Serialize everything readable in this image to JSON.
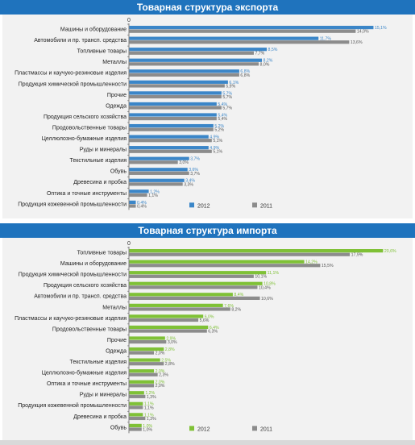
{
  "colors": {
    "header": "#1f73bd",
    "export_2012": "#3b86c8",
    "import_2012": "#7fc136",
    "y2011": "#8c8c8c"
  },
  "chart_data": [
    {
      "type": "bar",
      "orientation": "horizontal",
      "title": "Товарная структура экспорта",
      "zero_label": "0",
      "xlim": [
        0,
        16
      ],
      "legend_position": "bottom-right",
      "categories": [
        "Машины и оборудование",
        "Автомобили и пр. трансп. средства",
        "Топливные товары",
        "Металлы",
        "Пластмассы и каучуко-резиновые изделия",
        "Продукция химической промышленности",
        "Прочие",
        "Одежда",
        "Продукция сельского хозяйства",
        "Продовольственные товары",
        "Целлюлозно-бумажные изделия",
        "Руды и минералы",
        "Текстильные изделия",
        "Обувь",
        "Древесина и пробка",
        "Оптика и точные инструменты",
        "Продукция кожевенной промышленности"
      ],
      "series": [
        {
          "name": "2012",
          "color": "#3b86c8",
          "values": [
            15.1,
            11.7,
            8.5,
            8.2,
            6.8,
            6.1,
            5.7,
            5.4,
            5.4,
            5.2,
            4.9,
            4.9,
            3.7,
            3.6,
            3.4,
            1.2,
            0.4
          ],
          "labels": [
            "15,1%",
            "11,7%",
            "8,5%",
            "8,2%",
            "6,8%",
            "6,1%",
            "5,7%",
            "5,4%",
            "5,4%",
            "5,2%",
            "4,9%",
            "4,9%",
            "3,7%",
            "3,6%",
            "3,4%",
            "1,2%",
            "0,4%"
          ]
        },
        {
          "name": "2011",
          "color": "#8c8c8c",
          "values": [
            14.0,
            13.6,
            7.7,
            8.0,
            6.8,
            5.9,
            5.7,
            5.7,
            5.4,
            5.2,
            5.1,
            5.1,
            3.0,
            3.7,
            3.3,
            1.1,
            0.4
          ],
          "labels": [
            "14,0%",
            "13,6%",
            "7,7%",
            "8,0%",
            "6,8%",
            "5,9%",
            "5,7%",
            "5,7%",
            "5,4%",
            "5,2%",
            "5,1%",
            "5,1%",
            "3,0%",
            "3,7%",
            "3,3%",
            "1,1%",
            "0,4%"
          ]
        }
      ]
    },
    {
      "type": "bar",
      "orientation": "horizontal",
      "title": "Товарная структура импорта",
      "zero_label": "0",
      "xlim": [
        0,
        21
      ],
      "legend_position": "bottom-right",
      "categories": [
        "Топливные товары",
        "Машины и оборудование",
        "Продукция химической промышленности",
        "Продукция сельского хозяйства",
        "Автомобили и пр. трансп. средства",
        "Металлы",
        "Пластмассы и каучуко-резиновые изделия",
        "Продовольственные товары",
        "Прочие",
        "Одежда",
        "Текстильные изделия",
        "Целлюлозно-бумажные изделия",
        "Оптика и точные инструменты",
        "Руды и минералы",
        "Продукция кожевенной промышленности",
        "Древесина и пробка",
        "Обувь"
      ],
      "series": [
        {
          "name": "2012",
          "color": "#7fc136",
          "values": [
            20.6,
            14.2,
            11.1,
            10.8,
            8.4,
            7.6,
            6.0,
            6.4,
            2.9,
            2.8,
            2.5,
            2.0,
            2.0,
            1.2,
            1.1,
            1.1,
            1.0
          ],
          "labels": [
            "20,6%",
            "14,2%",
            "11,1%",
            "10,8%",
            "8,4%",
            "7,6%",
            "6,0%",
            "6,4%",
            "2,9%",
            "2,8%",
            "2,5%",
            "2,0%",
            "2,0%",
            "1,2%",
            "1,1%",
            "1,1%",
            "1,0%"
          ]
        },
        {
          "name": "2011",
          "color": "#8c8c8c",
          "values": [
            17.9,
            15.5,
            10.1,
            10.4,
            10.6,
            8.2,
            5.6,
            6.3,
            3.0,
            2.0,
            2.8,
            2.3,
            2.0,
            1.3,
            1.1,
            1.3,
            1.0
          ],
          "labels": [
            "17,9%",
            "15,5%",
            "10,1%",
            "10,4%",
            "10,6%",
            "8,2%",
            "5,6%",
            "6,3%",
            "3,0%",
            "2,0%",
            "2,8%",
            "2,3%",
            "2,0%",
            "1,3%",
            "1,1%",
            "1,3%",
            "1,0%"
          ]
        }
      ]
    }
  ]
}
